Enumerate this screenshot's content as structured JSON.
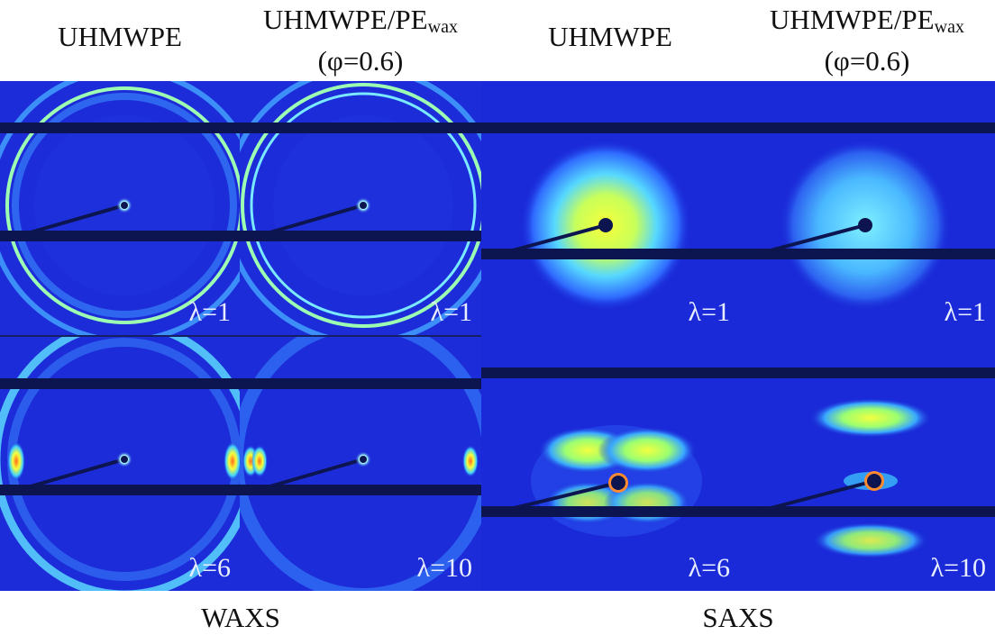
{
  "headers": [
    {
      "main": "UHMWPE"
    },
    {
      "main": "UHMWPE/PE",
      "sub": "wax",
      "line2": "(φ=0.6)"
    },
    {
      "main": "UHMWPE"
    },
    {
      "main": "UHMWPE/PE",
      "sub": "wax",
      "line2": "(φ=0.6)"
    }
  ],
  "panels": {
    "waxs_uhmwpe_l1": "λ=1",
    "waxs_blend_l1": "λ=1",
    "saxs_uhmwpe_l1": "λ=1",
    "saxs_blend_l1": "λ=1",
    "waxs_uhmwpe_l6": "λ=6",
    "waxs_blend_l10": "λ=10",
    "saxs_uhmwpe_l6": "λ=6",
    "saxs_blend_l10": "λ=10"
  },
  "footers": {
    "waxs": "WAXS",
    "saxs": "SAXS"
  },
  "colors": {
    "background": "#1a2ad8",
    "beamstop": "#0d1550",
    "ring": "#7fffb0",
    "hot": "#f4ff40"
  }
}
